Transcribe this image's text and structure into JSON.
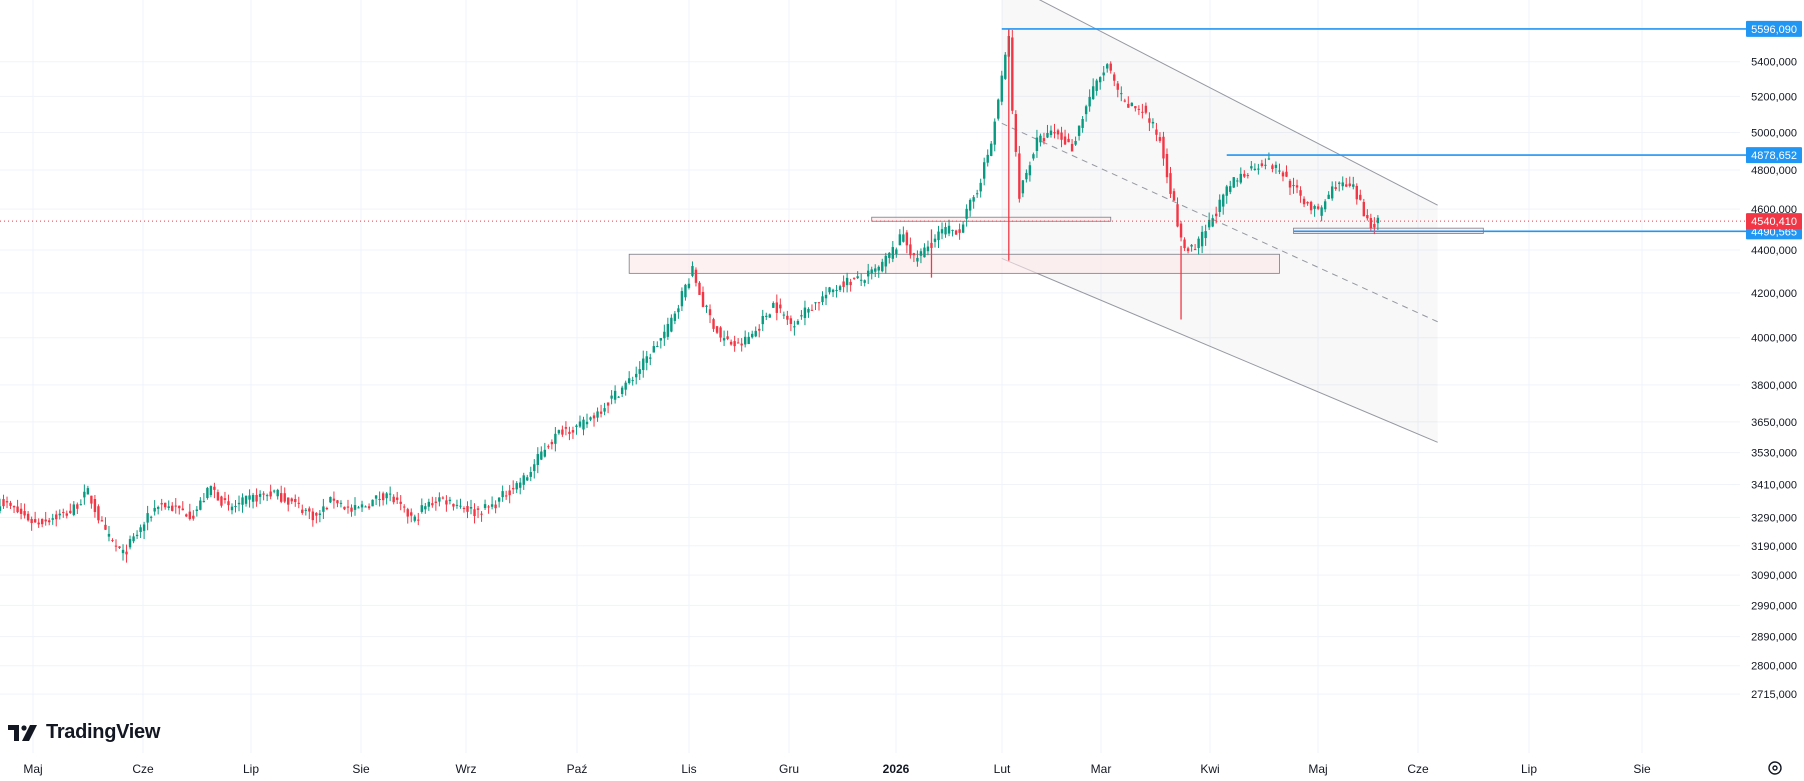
{
  "brand": {
    "name": "TradingView"
  },
  "colors": {
    "up": "#089981",
    "down": "#f23645",
    "line_blue": "#2962ff",
    "badge_blue": "#2196f3",
    "current_red": "#f23645",
    "channel": "#9598a1",
    "zone_fill": "#fde8ea",
    "grid": "#f0f3fa"
  },
  "chart_data": {
    "type": "candlestick",
    "y_scale": "log",
    "ylim": [
      2680,
      5700
    ],
    "y_ticks": [
      "5400,000",
      "5200,000",
      "5000,000",
      "4800,000",
      "4600,000",
      "4400,000",
      "4200,000",
      "4000,000",
      "3800,000",
      "3650,000",
      "3530,000",
      "3410,000",
      "3290,000",
      "3190,000",
      "3090,000",
      "2990,000",
      "2890,000",
      "2800,000",
      "2715,000"
    ],
    "x_ticks": [
      {
        "label": "Maj",
        "bold": false
      },
      {
        "label": "Cze",
        "bold": false
      },
      {
        "label": "Lip",
        "bold": false
      },
      {
        "label": "Sie",
        "bold": false
      },
      {
        "label": "Wrz",
        "bold": false
      },
      {
        "label": "Paź",
        "bold": false
      },
      {
        "label": "Lis",
        "bold": false
      },
      {
        "label": "Gru",
        "bold": false
      },
      {
        "label": "2026",
        "bold": true
      },
      {
        "label": "Lut",
        "bold": false
      },
      {
        "label": "Mar",
        "bold": false
      },
      {
        "label": "Kwi",
        "bold": false
      },
      {
        "label": "Maj",
        "bold": false
      },
      {
        "label": "Cze",
        "bold": false
      },
      {
        "label": "Lip",
        "bold": false
      },
      {
        "label": "Sie",
        "bold": false
      }
    ],
    "price_levels": [
      {
        "label": "5596,090",
        "value": 5596.09,
        "kind": "line"
      },
      {
        "label": "4878,652",
        "value": 4878.652,
        "kind": "line"
      },
      {
        "label": "4490,565",
        "value": 4490.565,
        "kind": "line"
      },
      {
        "label": "4540,410",
        "value": 4540.41,
        "kind": "current"
      }
    ],
    "close_anchors": [
      [
        0,
        3350
      ],
      [
        10,
        3270
      ],
      [
        20,
        3310
      ],
      [
        25,
        3380
      ],
      [
        30,
        3230
      ],
      [
        35,
        3160
      ],
      [
        45,
        3340
      ],
      [
        55,
        3300
      ],
      [
        60,
        3400
      ],
      [
        65,
        3320
      ],
      [
        72,
        3360
      ],
      [
        78,
        3380
      ],
      [
        85,
        3330
      ],
      [
        90,
        3290
      ],
      [
        95,
        3360
      ],
      [
        100,
        3310
      ],
      [
        105,
        3340
      ],
      [
        110,
        3380
      ],
      [
        115,
        3310
      ],
      [
        118,
        3280
      ],
      [
        120,
        3320
      ],
      [
        125,
        3360
      ],
      [
        130,
        3340
      ],
      [
        135,
        3310
      ],
      [
        140,
        3330
      ],
      [
        145,
        3390
      ],
      [
        150,
        3440
      ],
      [
        155,
        3550
      ],
      [
        160,
        3620
      ],
      [
        165,
        3630
      ],
      [
        170,
        3690
      ],
      [
        175,
        3760
      ],
      [
        180,
        3830
      ],
      [
        185,
        3930
      ],
      [
        190,
        4040
      ],
      [
        195,
        4230
      ],
      [
        197,
        4300
      ],
      [
        200,
        4150
      ],
      [
        205,
        4000
      ],
      [
        210,
        3960
      ],
      [
        215,
        4030
      ],
      [
        220,
        4150
      ],
      [
        225,
        4060
      ],
      [
        230,
        4130
      ],
      [
        235,
        4190
      ],
      [
        240,
        4250
      ],
      [
        245,
        4260
      ],
      [
        250,
        4310
      ],
      [
        255,
        4420
      ],
      [
        257,
        4480
      ],
      [
        260,
        4350
      ],
      [
        263,
        4400
      ],
      [
        268,
        4490
      ],
      [
        273,
        4500
      ],
      [
        278,
        4700
      ],
      [
        282,
        4940
      ],
      [
        285,
        5300
      ],
      [
        287,
        5560
      ],
      [
        288,
        5100
      ],
      [
        290,
        4680
      ],
      [
        295,
        4950
      ],
      [
        300,
        5000
      ],
      [
        305,
        4920
      ],
      [
        310,
        5200
      ],
      [
        315,
        5380
      ],
      [
        317,
        5270
      ],
      [
        320,
        5150
      ],
      [
        325,
        5130
      ],
      [
        330,
        4960
      ],
      [
        334,
        4620
      ],
      [
        336,
        4440
      ],
      [
        338,
        4400
      ],
      [
        340,
        4400
      ],
      [
        345,
        4560
      ],
      [
        350,
        4720
      ],
      [
        355,
        4800
      ],
      [
        360,
        4850
      ],
      [
        365,
        4780
      ],
      [
        370,
        4660
      ],
      [
        375,
        4580
      ],
      [
        380,
        4730
      ],
      [
        385,
        4700
      ],
      [
        388,
        4580
      ],
      [
        390,
        4530
      ],
      [
        392,
        4540
      ]
    ],
    "zones": [
      {
        "x0": 179,
        "x1": 364,
        "y_top": 4380,
        "y_bot": 4290
      },
      {
        "x0": 248,
        "x1": 316,
        "y_top": 4560,
        "y_bot": 4540
      },
      {
        "x0": 368,
        "x1": 422,
        "y_top": 4506,
        "y_bot": 4480
      }
    ],
    "channel": {
      "upper": [
        [
          285,
          5900
        ],
        [
          409,
          4620
        ]
      ],
      "mid": [
        [
          285,
          5050
        ],
        [
          409,
          4070
        ]
      ],
      "lower": [
        [
          285,
          4360
        ],
        [
          409,
          3570
        ]
      ]
    },
    "level_segments": [
      {
        "value": 5596.09,
        "x0": 285
      },
      {
        "value": 4878.652,
        "x0": 349
      },
      {
        "value": 4490.565,
        "x0": 368
      }
    ]
  }
}
